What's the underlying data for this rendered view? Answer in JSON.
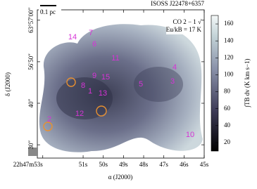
{
  "chart_data": {
    "type": "image",
    "title": "ISOSS J22478+6357",
    "scale_bar": "0.1 pc",
    "line_label": "CO 2 − 1 √",
    "energy_label": "Eu/kB = 17 K",
    "xlabel": "α (J2000)",
    "ylabel": "δ (J2000)",
    "xlim": [
      53.27,
      45.0
    ],
    "xticks": [
      {
        "value": 53,
        "label": "22h47m53s"
      },
      {
        "value": 51,
        "label": "51s"
      },
      {
        "value": 50,
        "label": "50s"
      },
      {
        "value": 49,
        "label": "49s"
      },
      {
        "value": 48,
        "label": "48s"
      },
      {
        "value": 47,
        "label": "47s"
      },
      {
        "value": 46,
        "label": "46s"
      },
      {
        "value": 45,
        "label": "45s"
      }
    ],
    "ylim": [
      26.8,
      62.5
    ],
    "yticks": [
      {
        "value": 60,
        "label": "63°57′00″"
      },
      {
        "value": 50,
        "label": "56′50″"
      },
      {
        "value": 40,
        "label": "40″"
      },
      {
        "value": 30,
        "label": "30″"
      }
    ],
    "colorbar_label": "∫TB dv (K km s−1)",
    "clim": [
      10,
      170
    ],
    "cticks": [
      20,
      40,
      60,
      80,
      100,
      120,
      140,
      160
    ],
    "annotation_color": "#d633d6",
    "annotations": [
      "14",
      "7",
      "6",
      "11",
      "4",
      "3",
      "5",
      "9",
      "15",
      "8",
      "1",
      "13",
      "12",
      "2",
      "10"
    ]
  }
}
